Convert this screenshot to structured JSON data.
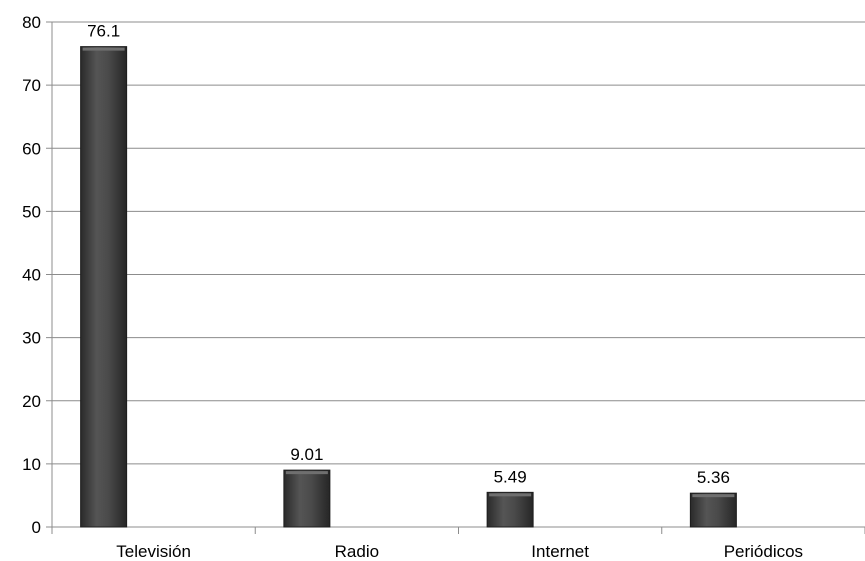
{
  "chart_data": {
    "type": "bar",
    "categories": [
      "Televisión",
      "Radio",
      "Internet",
      "Periódicos"
    ],
    "values": [
      76.1,
      9.01,
      5.49,
      5.36
    ],
    "data_labels": [
      "76.1",
      "9.01",
      "5.49",
      "5.36"
    ],
    "title": "",
    "xlabel": "",
    "ylabel": "",
    "ylim": [
      0,
      80
    ],
    "yticks": [
      0,
      10,
      20,
      30,
      40,
      50,
      60,
      70,
      80
    ],
    "grid": true,
    "legend": "none",
    "bar_color": "#3f3f3f",
    "bar_highlight": "#6f6f6f",
    "grid_color": "#8c8c8c"
  }
}
